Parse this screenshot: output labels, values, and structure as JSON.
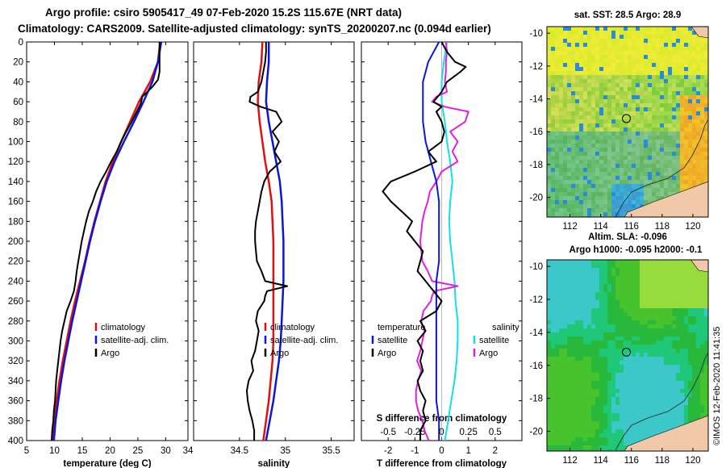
{
  "title": {
    "line1": "Argo profile: csiro 5905417_49 07-Feb-2020 15.2S 115.67E (NRT data)",
    "line2": "Climatology: CARS2009. Satellite-adjusted climatology: synTS_20200207.nc (0.094d earlier)"
  },
  "colors": {
    "climatology": "#e01010",
    "satellite": "#0a16d8",
    "argo": "#000000",
    "salinity_argo": "#e020e0",
    "salinity_sat": "#10e0e8"
  },
  "chart_data": [
    {
      "type": "line",
      "id": "temperature",
      "xlabel": "temperature (deg C)",
      "ylabel": "",
      "xlim": [
        5,
        34
      ],
      "ylim": [
        400,
        0
      ],
      "xticks": [
        "5",
        "10",
        "15",
        "20",
        "25",
        "30"
      ],
      "yticks": [
        "0",
        "20",
        "40",
        "60",
        "80",
        "100",
        "120",
        "140",
        "160",
        "180",
        "200",
        "220",
        "240",
        "260",
        "280",
        "300",
        "320",
        "340",
        "360",
        "380",
        "400"
      ],
      "legend": [
        "climatology",
        "satellite-adj. clim.",
        "Argo"
      ],
      "series": [
        {
          "name": "climatology",
          "depth": [
            0,
            20,
            40,
            60,
            80,
            100,
            120,
            140,
            160,
            180,
            200,
            220,
            240,
            260,
            280,
            300,
            320,
            340,
            360,
            380,
            400
          ],
          "values": [
            29.0,
            28.6,
            27.2,
            25.2,
            23.6,
            22.0,
            20.5,
            19.2,
            18.2,
            17.2,
            16.3,
            15.5,
            14.6,
            13.7,
            12.9,
            12.2,
            11.5,
            10.9,
            10.4,
            10.0,
            9.7
          ]
        },
        {
          "name": "satellite-adj. clim.",
          "depth": [
            0,
            20,
            40,
            60,
            80,
            100,
            120,
            140,
            160,
            180,
            200,
            220,
            240,
            260,
            280,
            300,
            320,
            340,
            360,
            380,
            400
          ],
          "values": [
            29.2,
            28.6,
            27.6,
            26.0,
            24.3,
            22.5,
            20.8,
            19.4,
            18.3,
            17.3,
            16.4,
            15.6,
            14.8,
            14.0,
            13.2,
            12.5,
            11.8,
            11.2,
            10.7,
            10.2,
            9.9
          ]
        },
        {
          "name": "Argo",
          "depth": [
            0,
            10,
            20,
            30,
            38,
            45,
            55,
            62,
            70,
            80,
            90,
            100,
            110,
            120,
            130,
            140,
            150,
            160,
            170,
            180,
            190,
            200,
            210,
            220,
            230,
            240,
            250,
            260,
            270,
            280,
            290,
            300,
            310,
            320,
            330,
            340,
            350,
            360,
            370,
            380,
            390,
            400
          ],
          "values": [
            28.9,
            28.9,
            28.9,
            28.9,
            28.6,
            27.6,
            25.8,
            25.5,
            24.8,
            23.9,
            22.9,
            22.0,
            21.2,
            20.2,
            19.3,
            18.3,
            17.5,
            16.9,
            16.2,
            15.7,
            15.3,
            14.9,
            14.6,
            14.3,
            14.0,
            13.8,
            13.5,
            12.9,
            12.2,
            11.8,
            11.4,
            11.1,
            10.9,
            10.7,
            10.5,
            10.3,
            10.2,
            10.1,
            9.9,
            9.8,
            9.6,
            9.5
          ]
        }
      ]
    },
    {
      "type": "line",
      "id": "salinity",
      "xlabel": "salinity",
      "xlim": [
        34,
        35.75
      ],
      "ylim": [
        400,
        0
      ],
      "xticks": [
        "34.5",
        "35",
        "35.5"
      ],
      "legend": [
        "climatology",
        "satellite-adj. clim.",
        "Argo"
      ],
      "series": [
        {
          "name": "climatology",
          "depth": [
            0,
            20,
            40,
            60,
            80,
            100,
            120,
            140,
            160,
            180,
            200,
            220,
            240,
            260,
            280,
            300,
            320,
            340,
            360,
            380,
            400
          ],
          "values": [
            34.75,
            34.74,
            34.71,
            34.7,
            34.72,
            34.75,
            34.78,
            34.82,
            34.85,
            34.86,
            34.87,
            34.87,
            34.87,
            34.87,
            34.87,
            34.87,
            34.86,
            34.84,
            34.82,
            34.79,
            34.76
          ]
        },
        {
          "name": "satellite-adj. clim.",
          "depth": [
            0,
            20,
            40,
            60,
            80,
            100,
            120,
            140,
            160,
            180,
            200,
            220,
            240,
            260,
            280,
            300,
            320,
            340,
            360,
            380,
            400
          ],
          "values": [
            34.82,
            34.82,
            34.8,
            34.79,
            34.82,
            34.86,
            34.9,
            34.94,
            34.96,
            34.97,
            34.98,
            34.98,
            34.98,
            34.97,
            34.96,
            34.95,
            34.93,
            34.9,
            34.87,
            34.83,
            34.79
          ]
        },
        {
          "name": "Argo",
          "depth": [
            0,
            10,
            20,
            30,
            40,
            50,
            55,
            60,
            65,
            70,
            80,
            90,
            100,
            110,
            120,
            130,
            140,
            150,
            160,
            170,
            180,
            190,
            200,
            210,
            220,
            230,
            240,
            245,
            250,
            255,
            260,
            270,
            280,
            290,
            300,
            310,
            320,
            330,
            340,
            350,
            360,
            370,
            380,
            390,
            400
          ],
          "values": [
            34.79,
            34.79,
            34.78,
            34.76,
            34.74,
            34.7,
            34.62,
            34.61,
            34.73,
            34.9,
            34.96,
            34.86,
            34.93,
            34.88,
            34.95,
            34.83,
            34.77,
            34.74,
            34.72,
            34.7,
            34.68,
            34.67,
            34.67,
            34.68,
            34.69,
            34.74,
            34.78,
            35.02,
            34.8,
            34.78,
            34.77,
            34.7,
            34.68,
            34.71,
            34.69,
            34.67,
            34.63,
            34.65,
            34.6,
            34.58,
            34.59,
            34.61,
            34.64,
            34.66,
            34.66
          ]
        }
      ]
    },
    {
      "type": "line",
      "id": "differences",
      "xlabel": "T difference from climatology",
      "xlabel2": "S difference from climatology",
      "xlim": [
        -3,
        3
      ],
      "x2lim": [
        -0.75,
        0.75
      ],
      "ylim": [
        400,
        0
      ],
      "xticks": [
        "-2",
        "-1",
        "0",
        "1",
        "2"
      ],
      "x2ticks": [
        "-0.5",
        "-0.25",
        "0",
        "0.25",
        "0.5"
      ],
      "legend_temperature": {
        "title": "temperature",
        "items": [
          "satellite",
          "Argo"
        ]
      },
      "legend_salinity": {
        "title": "salinity",
        "items": [
          "satellite",
          "Argo"
        ]
      },
      "series": [
        {
          "name": "T satellite",
          "depth": [
            0,
            20,
            40,
            60,
            80,
            100,
            120,
            140,
            160,
            180,
            200,
            220,
            240,
            260,
            280,
            300,
            320,
            340,
            360,
            380,
            400
          ],
          "values": [
            -0.1,
            -0.5,
            -0.7,
            -0.7,
            -0.7,
            -0.6,
            -0.4,
            -0.2,
            -0.1,
            -0.1,
            -0.1,
            -0.1,
            -0.2,
            -0.2,
            -0.2,
            -0.2,
            -0.2,
            -0.2,
            -0.2,
            -0.1,
            -0.1
          ]
        },
        {
          "name": "T Argo",
          "depth": [
            0,
            10,
            20,
            25,
            30,
            40,
            50,
            60,
            65,
            70,
            80,
            90,
            100,
            110,
            120,
            130,
            140,
            150,
            160,
            170,
            180,
            190,
            200,
            210,
            220,
            230,
            240,
            250,
            260,
            270,
            280,
            290,
            300,
            310,
            320,
            330,
            340,
            350,
            360,
            370,
            380,
            390,
            400
          ],
          "values": [
            0.0,
            0.2,
            0.5,
            0.9,
            0.7,
            0.2,
            0.0,
            -0.3,
            0.0,
            -0.2,
            0.0,
            0.1,
            0.0,
            -0.5,
            -0.2,
            -1.0,
            -1.9,
            -2.2,
            -1.9,
            -1.5,
            -1.1,
            -1.3,
            -1.0,
            -0.7,
            -0.8,
            -0.9,
            -0.6,
            -0.3,
            0.0,
            -0.2,
            -0.8,
            -0.6,
            -0.9,
            -0.7,
            -0.8,
            -0.7,
            -0.9,
            -0.8,
            -0.6,
            -0.7,
            -0.6,
            -0.8,
            -0.8
          ]
        },
        {
          "name": "S satellite",
          "depth": [
            0,
            20,
            40,
            60,
            80,
            100,
            120,
            140,
            160,
            180,
            200,
            220,
            240,
            260,
            280,
            300,
            320,
            340,
            360,
            380,
            400
          ],
          "values": [
            0.05,
            0.02,
            0.0,
            0.0,
            0.03,
            0.05,
            0.08,
            0.1,
            0.08,
            0.07,
            0.08,
            0.1,
            0.12,
            0.13,
            0.15,
            0.15,
            0.14,
            0.12,
            0.09,
            0.06,
            0.03
          ]
        },
        {
          "name": "S Argo",
          "depth": [
            0,
            10,
            20,
            30,
            40,
            50,
            55,
            60,
            65,
            70,
            80,
            90,
            100,
            110,
            120,
            130,
            140,
            150,
            160,
            170,
            180,
            190,
            200,
            210,
            220,
            230,
            240,
            245,
            250,
            255,
            260,
            270,
            280,
            290,
            300,
            310,
            320,
            330,
            340,
            350,
            360,
            370,
            380,
            390,
            400
          ],
          "values": [
            0.04,
            0.05,
            0.04,
            0.04,
            0.03,
            0.05,
            -0.05,
            -0.09,
            0.03,
            0.25,
            0.22,
            0.08,
            0.15,
            0.1,
            0.15,
            0.0,
            -0.05,
            -0.11,
            -0.13,
            -0.16,
            -0.18,
            -0.19,
            -0.2,
            -0.19,
            -0.18,
            -0.13,
            -0.09,
            0.15,
            -0.07,
            -0.09,
            -0.1,
            -0.17,
            -0.19,
            -0.16,
            -0.18,
            -0.2,
            -0.23,
            -0.19,
            -0.22,
            -0.24,
            -0.24,
            -0.22,
            -0.18,
            -0.16,
            -0.12
          ]
        }
      ]
    },
    {
      "type": "heatmap",
      "id": "sst_map",
      "title": "sat. SST: 28.5 Argo: 28.9",
      "xlim": [
        110.5,
        121
      ],
      "ylim": [
        -21.2,
        -9.6
      ],
      "xticks": [
        "112",
        "114",
        "116",
        "118",
        "120"
      ],
      "yticks": [
        "-10",
        "-12",
        "-14",
        "-16",
        "-18",
        "-20"
      ],
      "marker": {
        "lon": 115.67,
        "lat": -15.2
      }
    },
    {
      "type": "heatmap",
      "id": "sla_map",
      "title": "Altim. SLA: -0.096",
      "subtitle": "Argo h1000: -0.095 h2000: -0.1",
      "xlim": [
        110.5,
        121
      ],
      "ylim": [
        -21.2,
        -9.6
      ],
      "xticks": [
        "112",
        "114",
        "116",
        "118",
        "120"
      ],
      "yticks": [
        "-10",
        "-12",
        "-14",
        "-16",
        "-18",
        "-20"
      ],
      "marker": {
        "lon": 115.67,
        "lat": -15.2
      }
    }
  ],
  "stamp": "©IMOS 12-Feb-2020 11:41:35"
}
